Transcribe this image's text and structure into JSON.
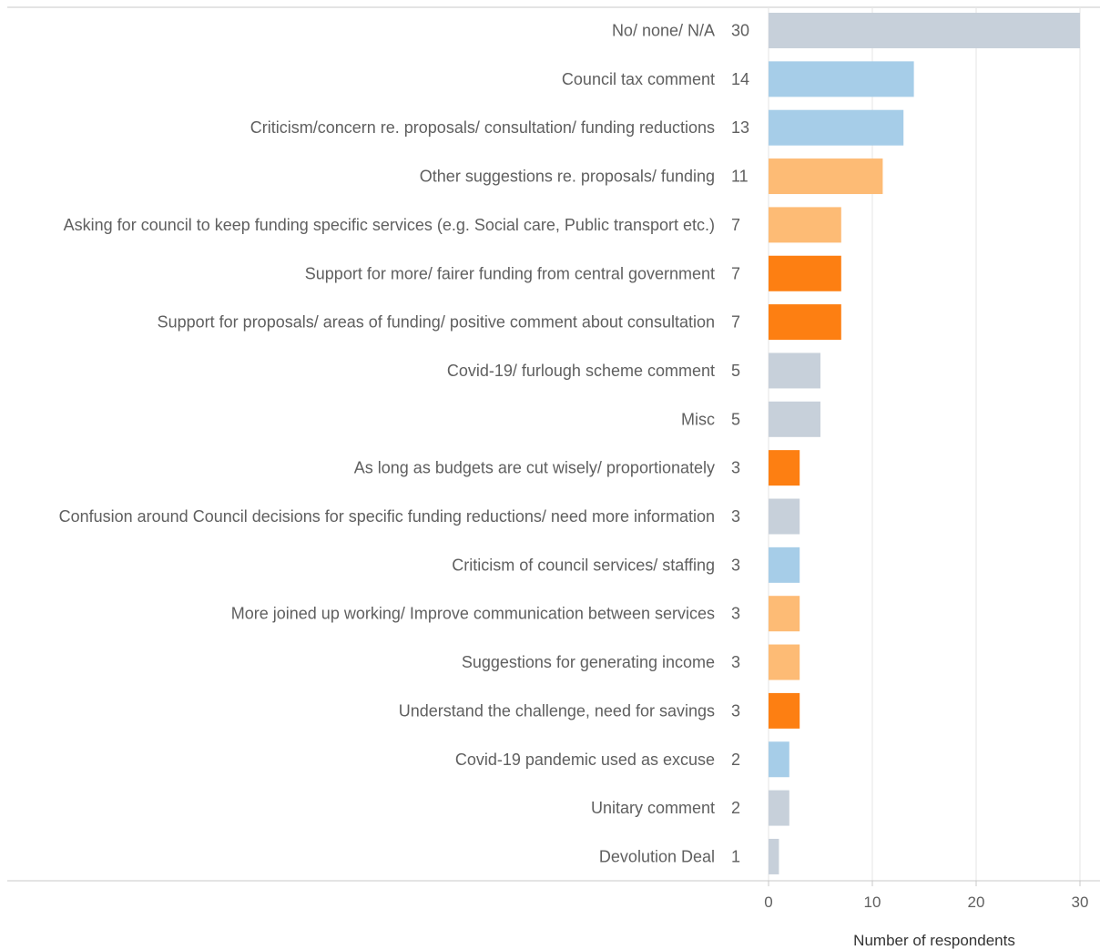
{
  "chart_data": {
    "type": "bar",
    "orientation": "horizontal",
    "xlabel": "Number of respondents",
    "xlim": [
      0,
      30
    ],
    "xticks": [
      0,
      10,
      20,
      30
    ],
    "grid": true,
    "categories": [
      "No/ none/ N/A",
      "Council tax comment",
      "Criticism/concern re. proposals/ consultation/ funding reductions",
      "Other suggestions re. proposals/ funding",
      "Asking for council to keep funding specific services (e.g. Social care, Public transport etc.)",
      "Support for more/ fairer funding from central government",
      "Support for proposals/ areas of funding/ positive comment about consultation",
      "Covid-19/ furlough scheme comment",
      "Misc",
      "As long as budgets are cut wisely/ proportionately",
      "Confusion around Council decisions for specific funding reductions/ need more information",
      "Criticism of council services/ staffing",
      "More joined up working/ Improve communication between services",
      "Suggestions for generating income",
      "Understand the challenge, need for savings",
      "Covid-19 pandemic used as excuse",
      "Unitary comment",
      "Devolution Deal"
    ],
    "values": [
      30,
      14,
      13,
      11,
      7,
      7,
      7,
      5,
      5,
      3,
      3,
      3,
      3,
      3,
      3,
      2,
      2,
      1
    ],
    "bar_colors": [
      "#c7d0da",
      "#a6cde8",
      "#a6cde8",
      "#fdbb75",
      "#fdbb75",
      "#fd7f12",
      "#fd7f12",
      "#c7d0da",
      "#c7d0da",
      "#fd7f12",
      "#c7d0da",
      "#a6cde8",
      "#fdbb75",
      "#fdbb75",
      "#fd7f12",
      "#a6cde8",
      "#c7d0da",
      "#c7d0da"
    ],
    "colors": {
      "gridline": "#e6e6e6",
      "axis_line": "#c8c8c8",
      "text": "#5f5f5f"
    }
  }
}
